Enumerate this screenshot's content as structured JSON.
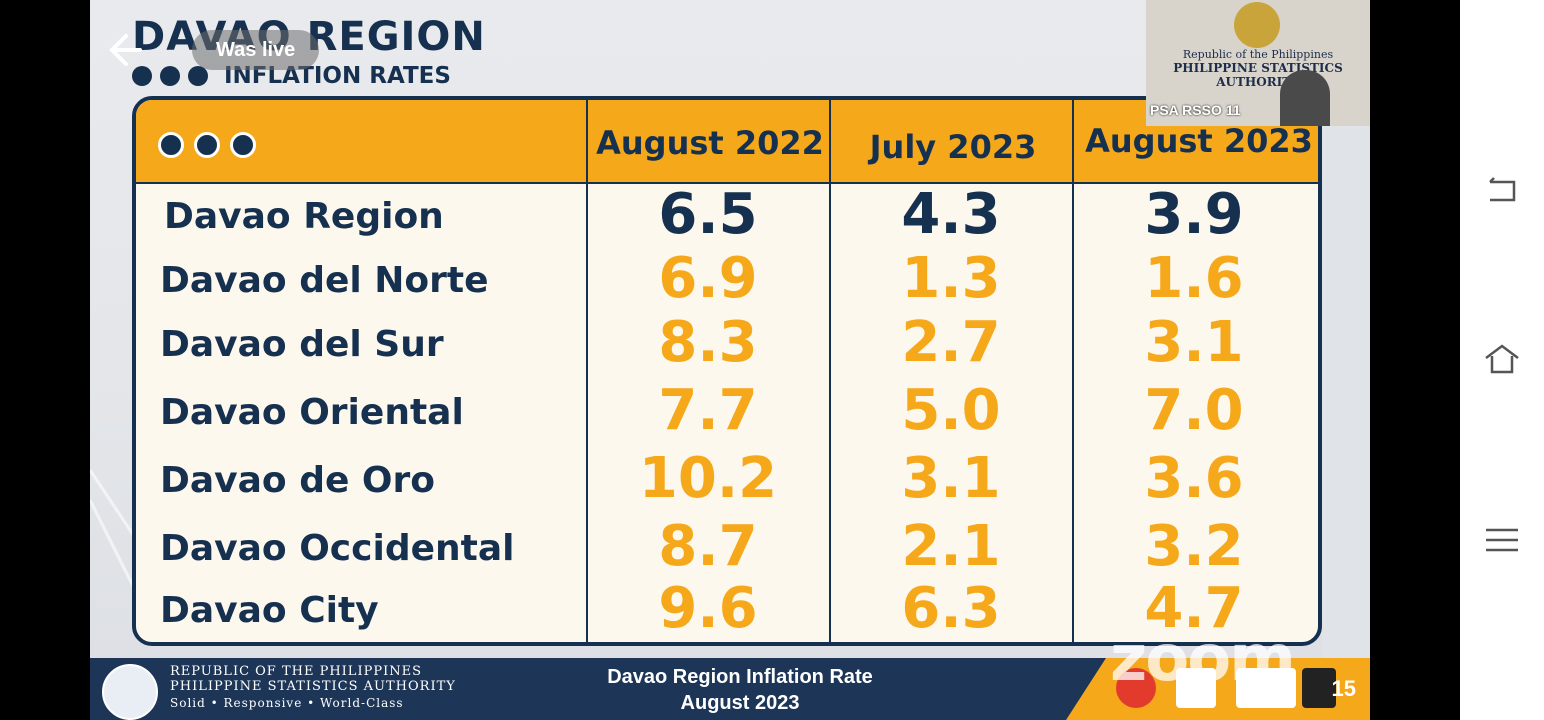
{
  "slide": {
    "title": "DAVAO REGION",
    "subtitle": "INFLATION RATES",
    "was_live": "Was live"
  },
  "table": {
    "columns": [
      "August 2022",
      "July 2023",
      "August 2023"
    ],
    "rows": [
      {
        "label": "Davao Region",
        "values": [
          "6.5",
          "4.3",
          "3.9"
        ]
      },
      {
        "label": "Davao del Norte",
        "values": [
          "6.9",
          "1.3",
          "1.6"
        ]
      },
      {
        "label": "Davao del Sur",
        "values": [
          "8.3",
          "2.7",
          "3.1"
        ]
      },
      {
        "label": "Davao Oriental",
        "values": [
          "7.7",
          "5.0",
          "7.0"
        ]
      },
      {
        "label": "Davao de Oro",
        "values": [
          "10.2",
          "3.1",
          "3.6"
        ]
      },
      {
        "label": "Davao Occidental",
        "values": [
          "8.7",
          "2.1",
          "3.2"
        ]
      },
      {
        "label": "Davao City",
        "values": [
          "9.6",
          "6.3",
          "4.7"
        ]
      }
    ]
  },
  "footer": {
    "org_line1": "Republic of the Philippines",
    "org_line2": "Philippine Statistics Authority",
    "org_line3": "Solid • Responsive • World-Class",
    "center_line1": "Davao Region Inflation Rate",
    "center_line2": "August 2023",
    "page_number": "15"
  },
  "watermark": "zoom",
  "webcam": {
    "banner_line1": "Republic of the Philippines",
    "banner_line2": "Philippine Statistics Authority",
    "label": "PSA RSSO 11"
  },
  "colors": {
    "navy": "#16304f",
    "orange": "#f6a81b",
    "cream": "#fdf8ee"
  }
}
